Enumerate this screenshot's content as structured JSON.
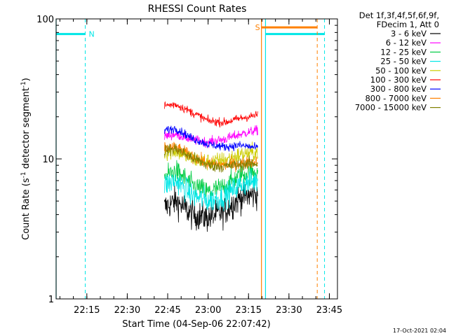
{
  "chart_data": {
    "type": "line",
    "title": "RHESSI Count Rates",
    "xlabel": "Start Time (04-Sep-06 22:07:42)",
    "ylabel_main": "Count Rate (s",
    "ylabel_sup1": "-1",
    "ylabel_mid": " detector segment",
    "ylabel_sup2": "-1",
    "ylabel_end": ")",
    "x_unit": "minutes",
    "xlim": [
      22.06,
      23.8
    ],
    "ylim": [
      1,
      100
    ],
    "yscale": "log",
    "xticks": [
      {
        "value": 22.25,
        "label": "22:15"
      },
      {
        "value": 22.5,
        "label": "22:30"
      },
      {
        "value": 22.75,
        "label": "22:45"
      },
      {
        "value": 23.0,
        "label": "23:00"
      },
      {
        "value": 23.25,
        "label": "23:15"
      },
      {
        "value": 23.5,
        "label": "23:30"
      },
      {
        "value": 23.75,
        "label": "23:45"
      }
    ],
    "yticks": [
      {
        "value": 1,
        "label": "1"
      },
      {
        "value": 10,
        "label": "10"
      },
      {
        "value": 100,
        "label": "100"
      }
    ],
    "legend_header": [
      "Det 1f,3f,4f,5f,6f,9f,",
      "FDecim 1, Att 0"
    ],
    "data_start": 22.73,
    "data_end": 23.3083,
    "shape_x": [
      22.73,
      22.8,
      22.9,
      23.0,
      23.1,
      23.2,
      23.3
    ],
    "series": [
      {
        "name": "3 - 6 keV",
        "color": "#000000",
        "noise": 0.12,
        "y": [
          4.5,
          5.0,
          4.0,
          3.8,
          4.2,
          5.3,
          5.6
        ]
      },
      {
        "name": "6 - 12 keV",
        "color": "#ff00ff",
        "noise": 0.04,
        "y": [
          14.5,
          15.0,
          13.7,
          13.2,
          13.8,
          15.0,
          16.0
        ]
      },
      {
        "name": "12 - 25 keV",
        "color": "#00cc44",
        "noise": 0.09,
        "y": [
          7.5,
          8.2,
          6.5,
          5.8,
          6.3,
          7.6,
          8.2
        ]
      },
      {
        "name": "25 - 50 keV",
        "color": "#00e6e6",
        "noise": 0.1,
        "y": [
          6.5,
          7.0,
          5.5,
          5.0,
          5.4,
          6.5,
          7.0
        ]
      },
      {
        "name": "50 - 100 keV",
        "color": "#cccc00",
        "noise": 0.07,
        "y": [
          11.0,
          11.5,
          10.0,
          9.5,
          9.8,
          10.7,
          11.2
        ]
      },
      {
        "name": "100 - 300 keV",
        "color": "#ff0000",
        "noise": 0.035,
        "y": [
          24.0,
          24.5,
          21.5,
          18.7,
          18.2,
          19.5,
          20.5
        ]
      },
      {
        "name": "300 - 800 keV",
        "color": "#0000ff",
        "noise": 0.035,
        "y": [
          16.0,
          16.5,
          14.0,
          12.7,
          12.2,
          12.5,
          12.0
        ]
      },
      {
        "name": "800 - 7000 keV",
        "color": "#ff8000",
        "noise": 0.05,
        "y": [
          12.0,
          12.0,
          10.5,
          9.2,
          9.0,
          9.3,
          9.6
        ]
      },
      {
        "name": "7000 - 15000 keV",
        "color": "#808000",
        "noise": 0.05,
        "y": [
          11.5,
          11.8,
          10.2,
          9.0,
          8.8,
          9.1,
          9.3
        ]
      }
    ],
    "flags": [
      {
        "label": "N",
        "color": "#00e6e6",
        "y": 78,
        "x_start": 22.06,
        "x_end": 22.24,
        "solid_lines": [
          22.06
        ],
        "dashed_lines": [
          22.24
        ]
      },
      {
        "label": "",
        "color": "#00e6e6",
        "y": 78,
        "x_start": 23.355,
        "x_end": 23.72,
        "solid_lines": [
          23.355
        ],
        "dashed_lines": [
          23.72
        ]
      },
      {
        "label": "S",
        "color": "#ff8000",
        "y": 87,
        "x_start": 23.33,
        "x_end": 23.675,
        "solid_lines": [
          23.33
        ],
        "dashed_lines": [
          23.675
        ]
      }
    ]
  },
  "footer_date": "17-Oct-2021 02:04"
}
